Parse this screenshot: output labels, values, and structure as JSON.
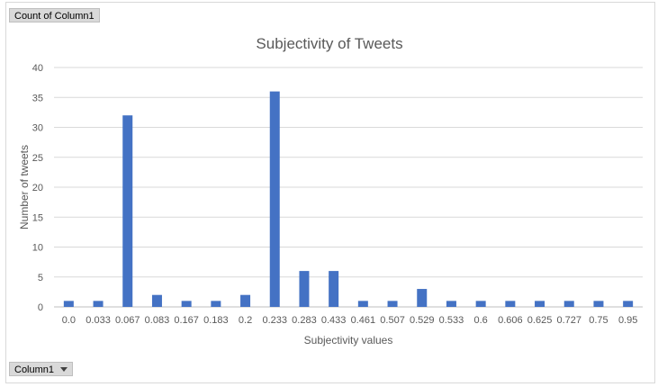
{
  "pivot": {
    "value_field": "Count of Column1",
    "axis_field": "Column1"
  },
  "colors": {
    "bar": "#4472c4",
    "grid": "#d9d9d9",
    "text": "#595959",
    "title": "#595959"
  },
  "chart_data": {
    "type": "bar",
    "title": "Subjectivity of Tweets",
    "xlabel": "Subjectivity values",
    "ylabel": "Number of tweets",
    "ylim": [
      0,
      40
    ],
    "yticks": [
      "0",
      "5",
      "10",
      "15",
      "20",
      "25",
      "30",
      "35",
      "40"
    ],
    "grid": true,
    "legend": "none",
    "categories": [
      "0.0",
      "0.033",
      "0.067",
      "0.083",
      "0.167",
      "0.183",
      "0.2",
      "0.233",
      "0.283",
      "0.433",
      "0.461",
      "0.507",
      "0.529",
      "0.533",
      "0.6",
      "0.606",
      "0.625",
      "0.727",
      "0.75",
      "0.95"
    ],
    "values": [
      1,
      1,
      32,
      2,
      1,
      1,
      2,
      36,
      6,
      6,
      1,
      1,
      3,
      1,
      1,
      1,
      1,
      1,
      1,
      1
    ]
  }
}
